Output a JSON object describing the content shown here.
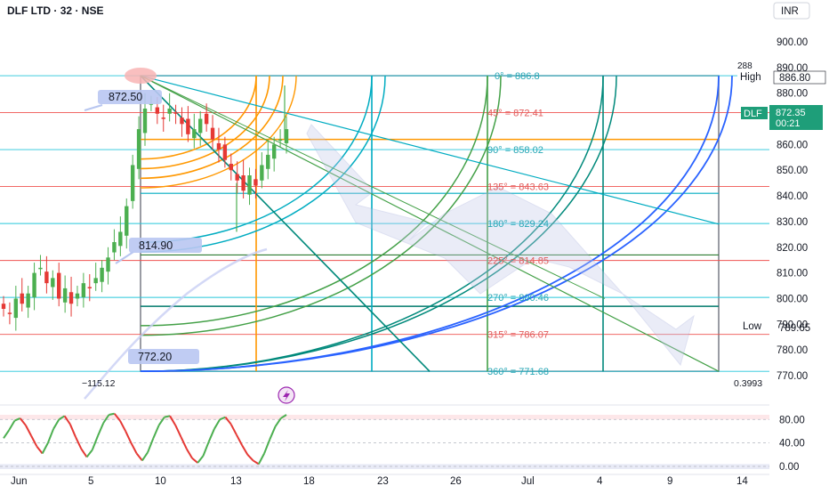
{
  "header": {
    "symbol_title": "DLF LTD · 32 · NSE",
    "currency": "INR"
  },
  "price_axis": {
    "ticks": [
      "900.00",
      "890.00",
      "880.00",
      "870.00",
      "860.00",
      "850.00",
      "840.00",
      "830.00",
      "820.00",
      "810.00",
      "800.00",
      "790.00",
      "780.00",
      "770.00"
    ],
    "tick_values": [
      900,
      890,
      880,
      870,
      860,
      850,
      840,
      830,
      820,
      810,
      800,
      790,
      780,
      770
    ],
    "high_label": "High",
    "high_value": "886.80",
    "low_label": "Low",
    "low_value": "789.65",
    "last_symbol": "DLF",
    "last_price": "872.35",
    "countdown": "00:21",
    "marker_288": "288"
  },
  "time_axis": {
    "labels": [
      "Jun",
      "5",
      "10",
      "13",
      "18",
      "23",
      "26",
      "Jul",
      "4",
      "9",
      "14"
    ]
  },
  "osc_axis": {
    "ticks": [
      "80.00",
      "40.00",
      "0.00"
    ]
  },
  "annotations": {
    "price_872": "872.50",
    "price_814": "814.90",
    "price_772": "772.20",
    "value_left": "−115.12",
    "value_right": "0.3993"
  },
  "gann_levels": [
    {
      "label": "0° = 886.8",
      "value": 886.8,
      "color": "#26a6b5"
    },
    {
      "label": "45° = 872.41",
      "value": 872.41,
      "color": "#e05a5a"
    },
    {
      "label": "90° = 858.02",
      "value": 858.02,
      "color": "#26a6b5"
    },
    {
      "label": "135° = 843.63",
      "value": 843.63,
      "color": "#e05a5a"
    },
    {
      "label": "180° = 829.24",
      "value": 829.24,
      "color": "#26a6b5"
    },
    {
      "label": "225° = 814.85",
      "value": 814.85,
      "color": "#e05a5a"
    },
    {
      "label": "270° = 800.46",
      "value": 800.46,
      "color": "#26a6b5"
    },
    {
      "label": "315° = 786.07",
      "value": 786.07,
      "color": "#e05a5a"
    },
    {
      "label": "360° = 771.68",
      "value": 771.68,
      "color": "#26a6b5"
    }
  ],
  "colors": {
    "up": "#4caf50",
    "down": "#e53935",
    "teal": "#00bcd4",
    "orange": "#ff9800",
    "green": "#1b9e5a",
    "blue": "#2962ff"
  },
  "chart_data": {
    "type": "candlestick",
    "title": "DLF LTD · 32 · NSE",
    "ylim": [
      765,
      906
    ],
    "close_series": [
      796,
      794,
      800,
      798,
      802,
      810,
      812,
      806,
      808,
      800,
      804,
      798,
      802,
      806,
      804,
      808,
      812,
      816,
      822,
      826,
      836,
      852,
      866,
      874,
      876,
      872,
      870,
      874,
      872,
      868,
      864,
      866,
      870,
      868,
      862,
      858,
      854,
      850,
      846,
      842,
      848,
      844,
      852,
      856,
      860,
      862,
      866
    ],
    "last": 872.35,
    "high": 886.8,
    "low": 789.65,
    "oscillator": {
      "ylim": [
        -8,
        92
      ],
      "values": [
        48,
        62,
        78,
        82,
        70,
        52,
        34,
        22,
        40,
        64,
        80,
        86,
        72,
        50,
        30,
        16,
        28,
        52,
        74,
        88,
        90,
        78,
        60,
        40,
        22,
        10,
        24,
        48,
        70,
        84,
        86,
        70,
        50,
        30,
        14,
        6,
        18,
        42,
        64,
        80,
        84,
        72,
        54,
        36,
        20,
        10,
        4,
        22,
        46,
        68,
        82,
        88
      ]
    }
  }
}
